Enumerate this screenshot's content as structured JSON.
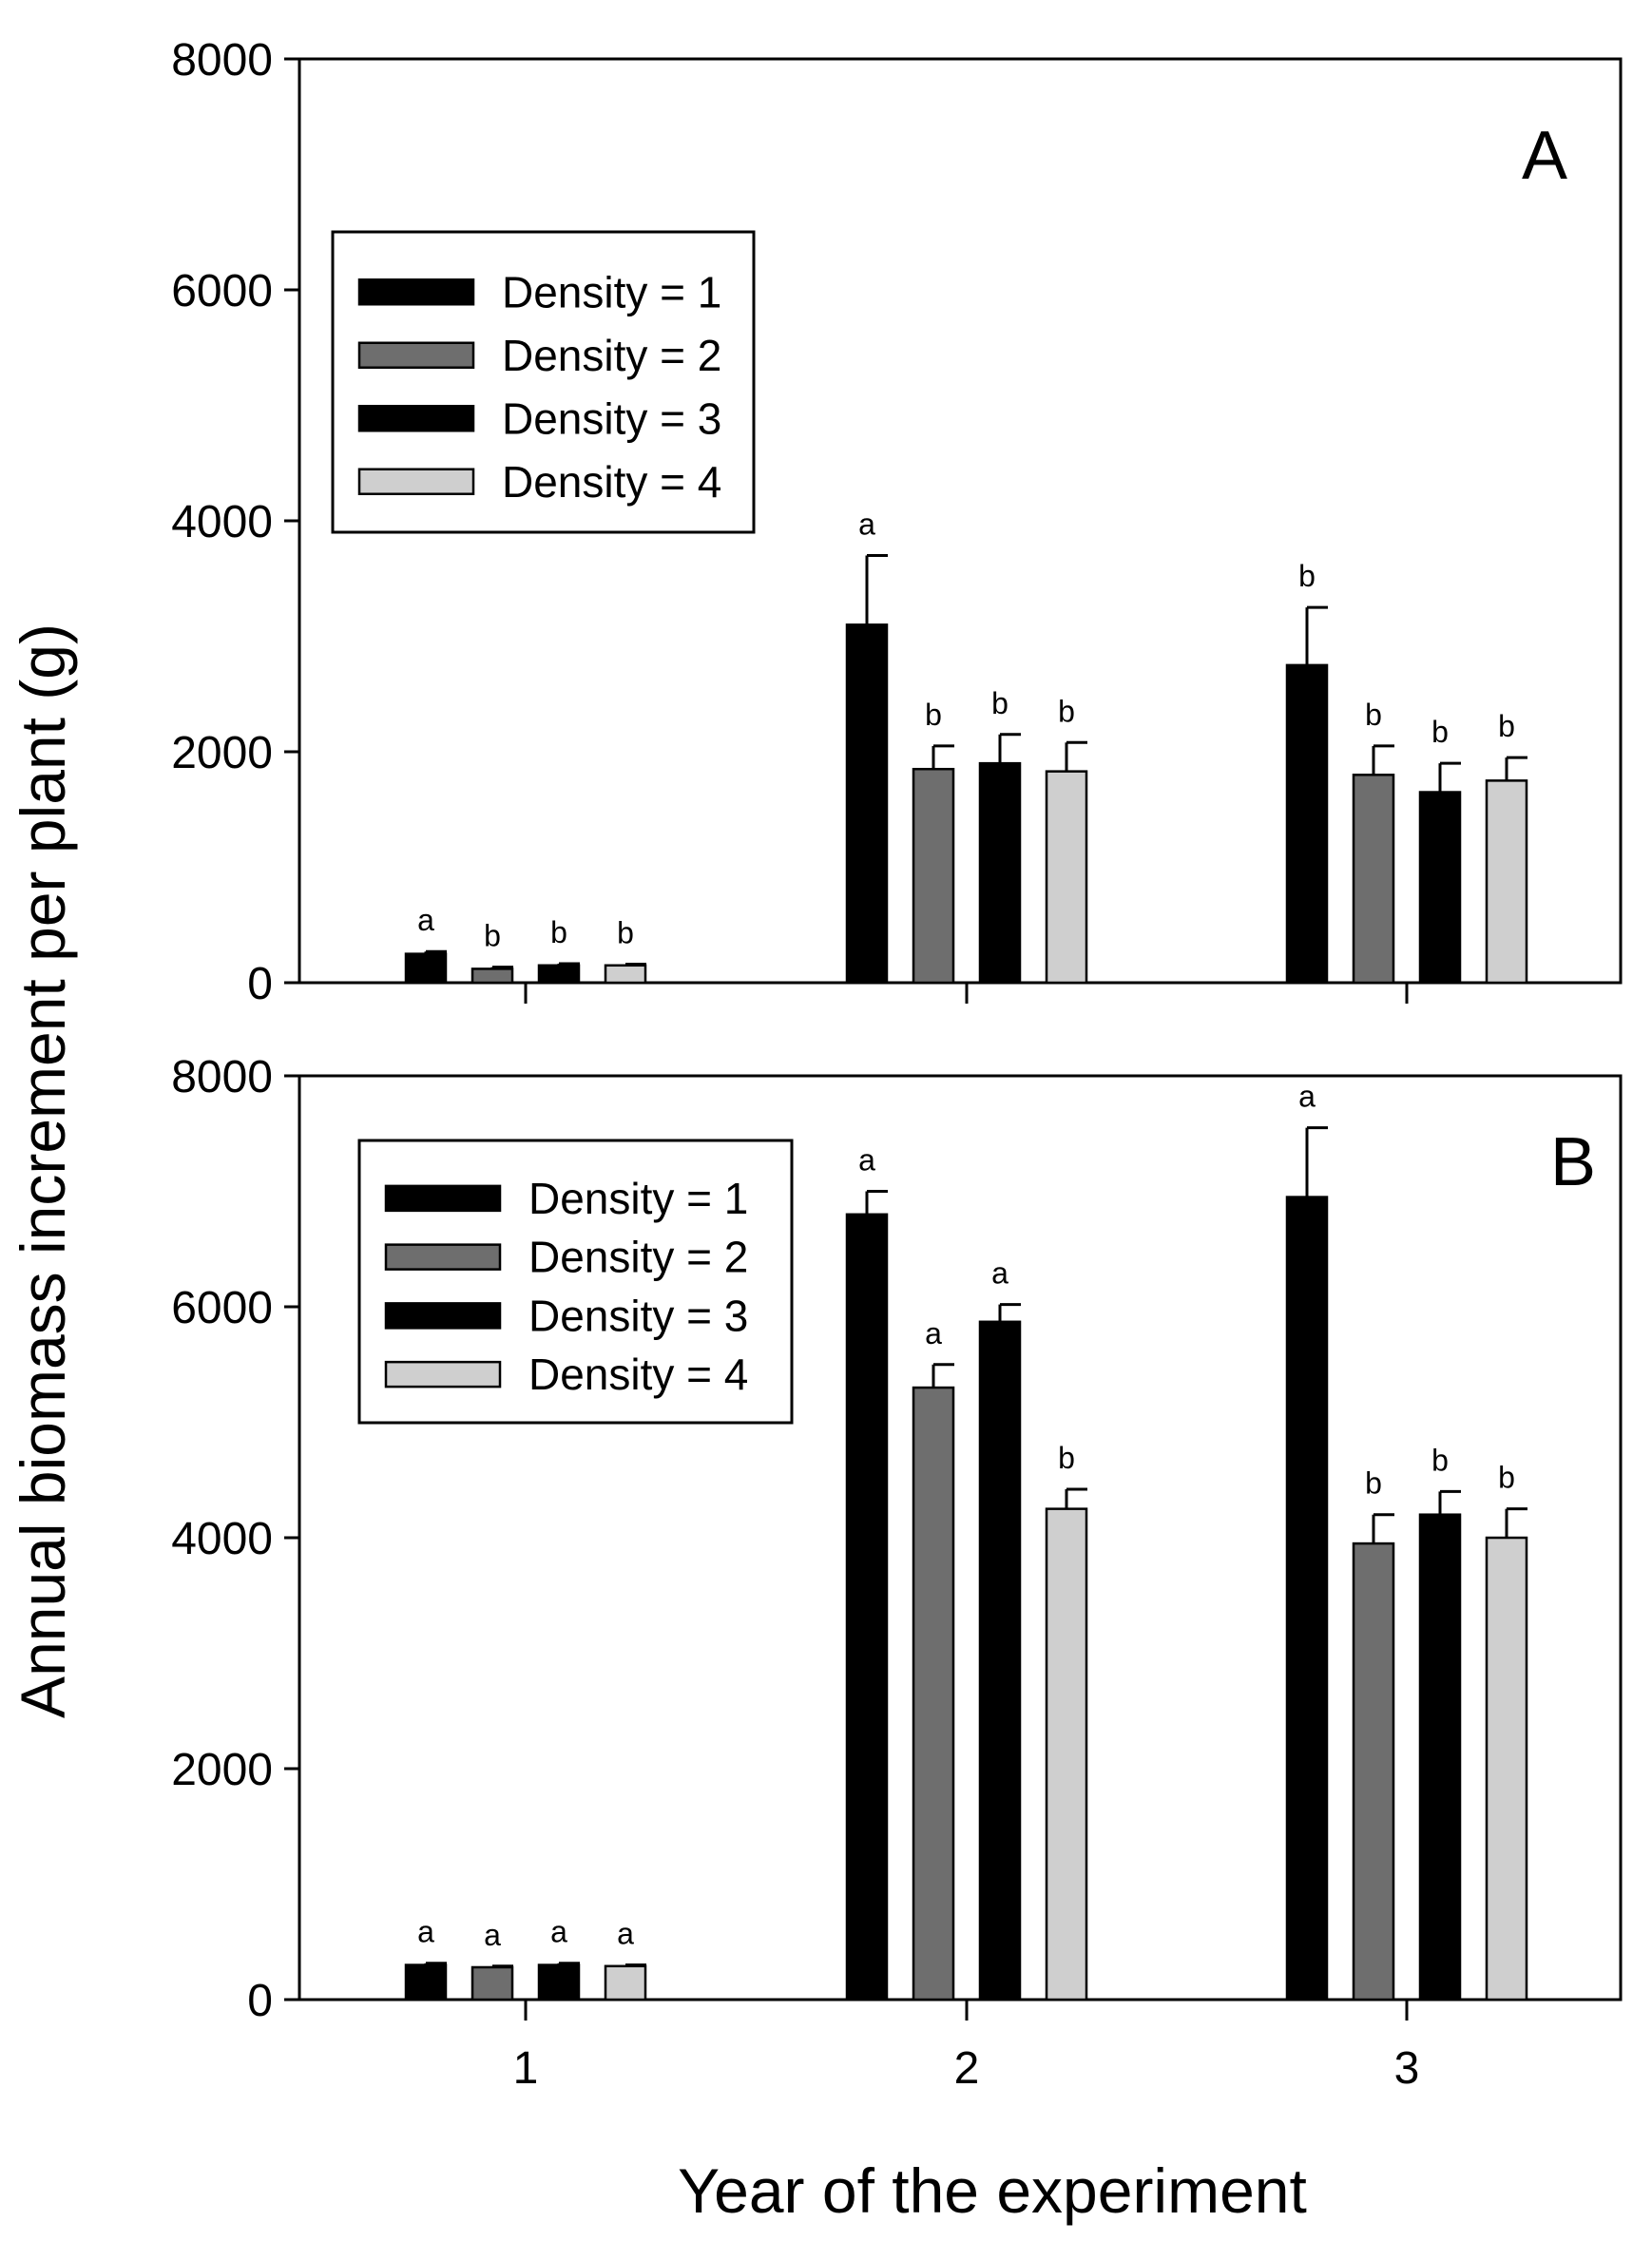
{
  "chart_data": [
    {
      "type": "bar",
      "panel_label": "A",
      "categories": [
        "1",
        "2",
        "3"
      ],
      "ylim": [
        0,
        8000
      ],
      "yticks": [
        0,
        2000,
        4000,
        6000,
        8000
      ],
      "legend_position": "upper-left",
      "series": [
        {
          "name": "Density = 1",
          "color": "#000000",
          "values": [
            250,
            3100,
            2750
          ],
          "errors": [
            20,
            600,
            500
          ],
          "letters": [
            "a",
            "a",
            "b"
          ]
        },
        {
          "name": "Density = 2",
          "color": "#6e6e6e",
          "values": [
            120,
            1850,
            1800
          ],
          "errors": [
            15,
            200,
            250
          ],
          "letters": [
            "b",
            "b",
            "b"
          ]
        },
        {
          "name": "Density = 3",
          "color": "#000000",
          "values": [
            150,
            1900,
            1650
          ],
          "errors": [
            15,
            250,
            250
          ],
          "letters": [
            "b",
            "b",
            "b"
          ]
        },
        {
          "name": "Density = 4",
          "color": "#cfcfcf",
          "values": [
            150,
            1830,
            1750
          ],
          "errors": [
            10,
            250,
            200
          ],
          "letters": [
            "b",
            "b",
            "b"
          ]
        }
      ]
    },
    {
      "type": "bar",
      "panel_label": "B",
      "categories": [
        "1",
        "2",
        "3"
      ],
      "ylim": [
        0,
        8000
      ],
      "yticks": [
        0,
        2000,
        4000,
        6000,
        8000
      ],
      "xlabel": "Year of the experiment",
      "legend_position": "upper-left",
      "series": [
        {
          "name": "Density = 1",
          "color": "#000000",
          "values": [
            300,
            6800,
            6950
          ],
          "errors": [
            15,
            200,
            600
          ],
          "letters": [
            "a",
            "a",
            "a"
          ]
        },
        {
          "name": "Density = 2",
          "color": "#6e6e6e",
          "values": [
            280,
            5300,
            3950
          ],
          "errors": [
            10,
            200,
            250
          ],
          "letters": [
            "a",
            "a",
            "b"
          ]
        },
        {
          "name": "Density = 3",
          "color": "#000000",
          "values": [
            300,
            5870,
            4200
          ],
          "errors": [
            15,
            150,
            200
          ],
          "letters": [
            "a",
            "a",
            "b"
          ]
        },
        {
          "name": "Density = 4",
          "color": "#cfcfcf",
          "values": [
            290,
            4250,
            4000
          ],
          "errors": [
            10,
            170,
            250
          ],
          "letters": [
            "a",
            "b",
            "b"
          ]
        }
      ]
    }
  ],
  "ylabel": "Annual biomass increment per plant (g)"
}
